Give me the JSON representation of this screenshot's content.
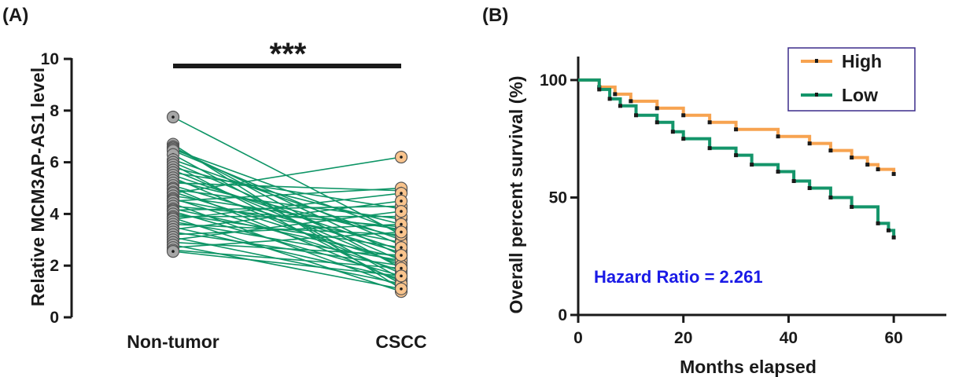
{
  "colors": {
    "axis": "#1a1a1a",
    "paired_line": "#0e9566",
    "nontumor_dot": "#a6a6a6",
    "cscc_dot": "#f9c48d",
    "high": "#f7a350",
    "low": "#14956a",
    "annotation": "#1a1ae6",
    "legend_border": "#3b2c8a"
  },
  "chart_data": [
    {
      "panel_label": "(A)",
      "type": "scatter",
      "subtype": "paired-dot-plot",
      "categories": [
        "Non-tumor",
        "CSCC"
      ],
      "ylabel": "Relative MCM3AP-AS1 level",
      "xlabel": "",
      "ylim": [
        0,
        10
      ],
      "yticks": [
        0,
        2,
        4,
        6,
        8,
        10
      ],
      "significance": "***",
      "pairs": [
        [
          7.75,
          3.2
        ],
        [
          6.7,
          1.1
        ],
        [
          6.6,
          1.9
        ],
        [
          6.55,
          2.4
        ],
        [
          6.5,
          3.3
        ],
        [
          6.45,
          2.8
        ],
        [
          6.3,
          1.5
        ],
        [
          6.1,
          3.0
        ],
        [
          6.0,
          2.2
        ],
        [
          5.9,
          1.3
        ],
        [
          5.8,
          3.6
        ],
        [
          5.7,
          2.0
        ],
        [
          5.6,
          4.2
        ],
        [
          5.5,
          2.6
        ],
        [
          5.4,
          1.7
        ],
        [
          5.3,
          3.1
        ],
        [
          5.2,
          4.9
        ],
        [
          5.1,
          2.5
        ],
        [
          5.0,
          1.4
        ],
        [
          4.95,
          3.8
        ],
        [
          4.85,
          2.1
        ],
        [
          4.8,
          6.2
        ],
        [
          4.7,
          3.4
        ],
        [
          4.6,
          1.8
        ],
        [
          4.55,
          2.9
        ],
        [
          4.5,
          5.0
        ],
        [
          4.4,
          1.2
        ],
        [
          4.3,
          3.5
        ],
        [
          4.2,
          2.3
        ],
        [
          4.15,
          4.3
        ],
        [
          4.1,
          1.6
        ],
        [
          4.0,
          2.7
        ],
        [
          3.9,
          3.9
        ],
        [
          3.85,
          1.0
        ],
        [
          3.8,
          4.8
        ],
        [
          3.7,
          2.2
        ],
        [
          3.6,
          3.2
        ],
        [
          3.5,
          1.5
        ],
        [
          3.4,
          4.5
        ],
        [
          3.3,
          2.0
        ],
        [
          3.2,
          3.6
        ],
        [
          3.1,
          1.3
        ],
        [
          3.0,
          4.1
        ],
        [
          2.9,
          2.4
        ],
        [
          2.8,
          1.1
        ],
        [
          2.7,
          3.3
        ],
        [
          2.6,
          1.9
        ],
        [
          2.55,
          1.6
        ]
      ]
    },
    {
      "panel_label": "(B)",
      "type": "line",
      "subtype": "kaplan-meier",
      "xlabel": "Months elapsed",
      "ylabel": "Overall percent survival (%)",
      "xlim": [
        0,
        70
      ],
      "ylim": [
        0,
        110
      ],
      "xticks": [
        0,
        20,
        40,
        60
      ],
      "yticks": [
        0,
        50,
        100
      ],
      "legend_position": "top-right",
      "annotation": "Hazard Ratio = 2.261",
      "series": [
        {
          "name": "High",
          "color_key": "high",
          "x": [
            0,
            4,
            7,
            10,
            15,
            20,
            25,
            30,
            38,
            44,
            48,
            52,
            55,
            57,
            60
          ],
          "y": [
            100,
            97,
            94,
            91,
            88,
            85,
            82,
            79,
            76,
            73,
            70,
            67,
            64,
            62,
            60
          ]
        },
        {
          "name": "Low",
          "color_key": "low",
          "x": [
            0,
            4,
            6,
            8,
            11,
            15,
            18,
            20,
            25,
            30,
            33,
            38,
            41,
            44,
            48,
            52,
            57,
            59,
            60
          ],
          "y": [
            100,
            96,
            92,
            89,
            85,
            82,
            78,
            75,
            71,
            68,
            64,
            61,
            57,
            54,
            50,
            46,
            39,
            36,
            33
          ]
        }
      ]
    }
  ]
}
